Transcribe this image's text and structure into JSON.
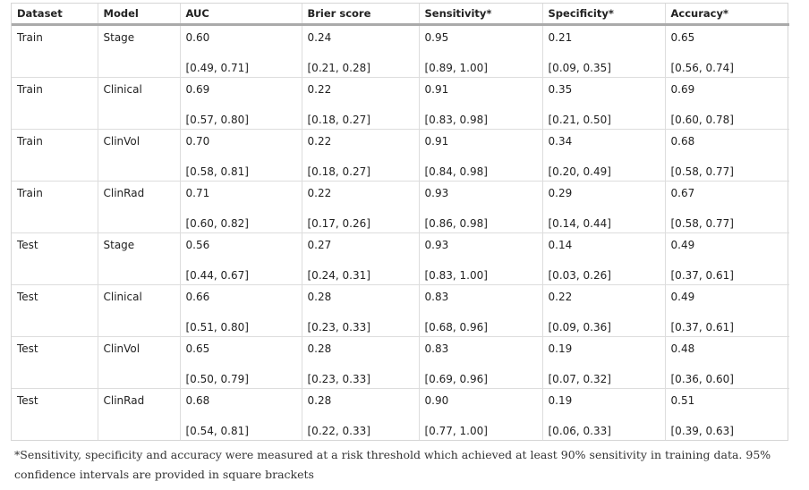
{
  "table": {
    "headers": [
      "Dataset",
      "Model",
      "AUC",
      "Brier score",
      "Sensitivity*",
      "Specificity*",
      "Accuracy*"
    ],
    "rows": [
      {
        "dataset": "Train",
        "model": "Stage",
        "auc": "0.60",
        "auc_ci": "[0.49, 0.71]",
        "brier": "0.24",
        "brier_ci": "[0.21, 0.28]",
        "sens": "0.95",
        "sens_ci": "[0.89, 1.00]",
        "spec": "0.21",
        "spec_ci": "[0.09, 0.35]",
        "acc": "0.65",
        "acc_ci": "[0.56, 0.74]"
      },
      {
        "dataset": "Train",
        "model": "Clinical",
        "auc": "0.69",
        "auc_ci": "[0.57, 0.80]",
        "brier": "0.22",
        "brier_ci": "[0.18, 0.27]",
        "sens": "0.91",
        "sens_ci": "[0.83, 0.98]",
        "spec": "0.35",
        "spec_ci": "[0.21, 0.50]",
        "acc": "0.69",
        "acc_ci": "[0.60, 0.78]"
      },
      {
        "dataset": "Train",
        "model": "ClinVol",
        "auc": "0.70",
        "auc_ci": "[0.58, 0.81]",
        "brier": "0.22",
        "brier_ci": "[0.18, 0.27]",
        "sens": "0.91",
        "sens_ci": "[0.84, 0.98]",
        "spec": "0.34",
        "spec_ci": "[0.20, 0.49]",
        "acc": "0.68",
        "acc_ci": "[0.58, 0.77]"
      },
      {
        "dataset": "Train",
        "model": "ClinRad",
        "auc": "0.71",
        "auc_ci": "[0.60, 0.82]",
        "brier": "0.22",
        "brier_ci": "[0.17, 0.26]",
        "sens": "0.93",
        "sens_ci": "[0.86, 0.98]",
        "spec": "0.29",
        "spec_ci": "[0.14, 0.44]",
        "acc": "0.67",
        "acc_ci": "[0.58, 0.77]"
      },
      {
        "dataset": "Test",
        "model": "Stage",
        "auc": "0.56",
        "auc_ci": "[0.44, 0.67]",
        "brier": "0.27",
        "brier_ci": "[0.24, 0.31]",
        "sens": "0.93",
        "sens_ci": "[0.83, 1.00]",
        "spec": "0.14",
        "spec_ci": "[0.03, 0.26]",
        "acc": "0.49",
        "acc_ci": "[0.37, 0.61]"
      },
      {
        "dataset": "Test",
        "model": "Clinical",
        "auc": "0.66",
        "auc_ci": "[0.51, 0.80]",
        "brier": "0.28",
        "brier_ci": "[0.23, 0.33]",
        "sens": "0.83",
        "sens_ci": "[0.68, 0.96]",
        "spec": "0.22",
        "spec_ci": "[0.09, 0.36]",
        "acc": "0.49",
        "acc_ci": "[0.37, 0.61]"
      },
      {
        "dataset": "Test",
        "model": "ClinVol",
        "auc": "0.65",
        "auc_ci": "[0.50, 0.79]",
        "brier": "0.28",
        "brier_ci": "[0.23, 0.33]",
        "sens": "0.83",
        "sens_ci": "[0.69, 0.96]",
        "spec": "0.19",
        "spec_ci": "[0.07, 0.32]",
        "acc": "0.48",
        "acc_ci": "[0.36, 0.60]"
      },
      {
        "dataset": "Test",
        "model": "ClinRad",
        "auc": "0.68",
        "auc_ci": "[0.54, 0.81]",
        "brier": "0.28",
        "brier_ci": "[0.22, 0.33]",
        "sens": "0.90",
        "sens_ci": "[0.77, 1.00]",
        "spec": "0.19",
        "spec_ci": "[0.06, 0.33]",
        "acc": "0.51",
        "acc_ci": "[0.39, 0.63]"
      }
    ]
  },
  "footnote": "*Sensitivity, specificity and accuracy were measured at a risk threshold which achieved at least 90% sensitivity in training data. 95% confidence intervals are provided in square brackets"
}
